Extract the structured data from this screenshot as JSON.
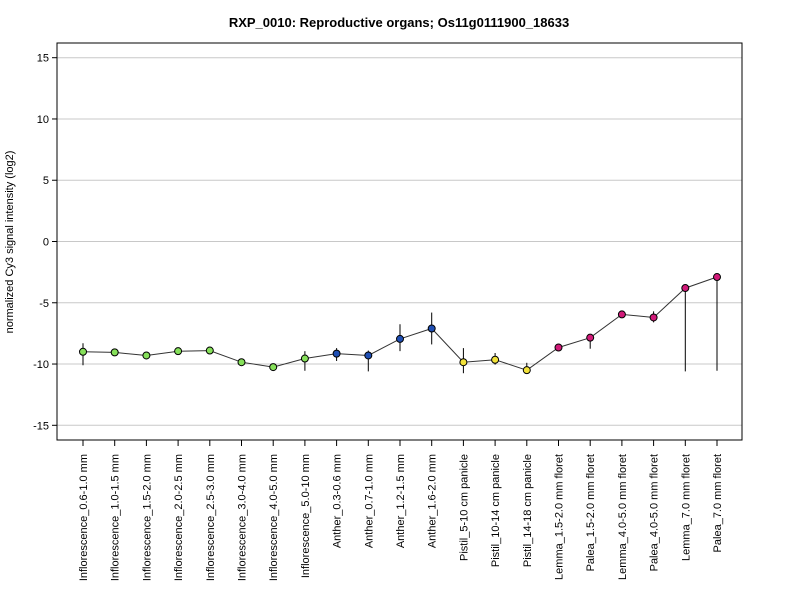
{
  "chart_data": {
    "type": "line",
    "title": "RXP_0010: Reproductive organs; Os11g0111900_18633",
    "xlabel": "",
    "ylabel": "normalized Cy3 signal intensity (log2)",
    "ylim": [
      -16.2,
      16.2
    ],
    "yticks": [
      -15,
      -10,
      -5,
      0,
      5,
      10,
      15
    ],
    "grid": true,
    "categories": [
      "Inflorescence_0.6-1.0 mm",
      "Inflorescence_1.0-1.5 mm",
      "Inflorescence_1.5-2.0 mm",
      "Inflorescence_2.0-2.5 mm",
      "Inflorescence_2.5-3.0 mm",
      "Inflorescence_3.0-4.0 mm",
      "Inflorescence_4.0-5.0 mm",
      "Inflorescence_5.0-10 mm",
      "Anther_0.3-0.6 mm",
      "Anther_0.7-1.0 mm",
      "Anther_1.2-1.5 mm",
      "Anther_1.6-2.0 mm",
      "Pistil_5-10 cm panicle",
      "Pistil_10-14 cm panicle",
      "Pistil_14-18 cm panicle",
      "Lemma_1.5-2.0 mm floret",
      "Palea_1.5-2.0 mm floret",
      "Lemma_4.0-5.0 mm floret",
      "Palea_4.0-5.0 mm floret",
      "Lemma_7.0 mm floret",
      "Palea_7.0 mm floret"
    ],
    "values": [
      -9.0,
      -9.05,
      -9.3,
      -8.95,
      -8.9,
      -9.85,
      -10.25,
      -9.55,
      -9.15,
      -9.3,
      -7.95,
      -7.1,
      -9.85,
      -9.65,
      -10.5,
      -8.65,
      -7.85,
      -5.95,
      -6.2,
      -3.8,
      -2.9
    ],
    "error_low": [
      -10.1,
      -9.15,
      -9.4,
      -9.05,
      -9.0,
      -9.95,
      -10.45,
      -10.55,
      -9.75,
      -10.6,
      -8.95,
      -8.4,
      -10.75,
      -10.05,
      -10.6,
      -8.85,
      -8.75,
      -6.05,
      -6.6,
      -10.6,
      -10.55
    ],
    "error_high": [
      -8.3,
      -8.95,
      -9.2,
      -8.85,
      -8.8,
      -9.75,
      -10.05,
      -8.95,
      -8.7,
      -8.9,
      -6.75,
      -5.8,
      -8.7,
      -9.1,
      -9.9,
      -8.45,
      -7.65,
      -5.85,
      -5.7,
      -3.7,
      -2.8
    ],
    "point_colors": [
      "#86e05a",
      "#86e05a",
      "#86e05a",
      "#86e05a",
      "#86e05a",
      "#86e05a",
      "#86e05a",
      "#86e05a",
      "#1f4fb4",
      "#1f4fb4",
      "#1f4fb4",
      "#1f4fb4",
      "#f2e23a",
      "#f2e23a",
      "#f2e23a",
      "#d11a79",
      "#d11a79",
      "#d11a79",
      "#d11a79",
      "#d11a79",
      "#d11a79"
    ],
    "line_color": "#333333",
    "grid_color": "#c8c8c8"
  }
}
